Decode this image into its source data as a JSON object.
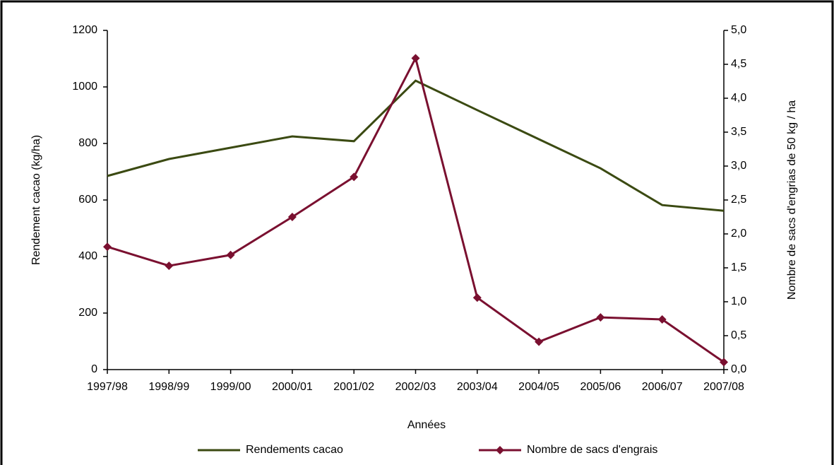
{
  "chart_data": {
    "type": "line",
    "x_label": "Années",
    "y_label": "Rendement cacao (kg/ha)",
    "y2_label": "Nombre de sacs d'engrias de 50 kg / ha",
    "categories": [
      "1997/98",
      "1998/99",
      "1999/00",
      "2000/01",
      "2001/02",
      "2002/03",
      "2003/04",
      "2004/05",
      "2005/06",
      "2006/07",
      "2007/08"
    ],
    "series": [
      {
        "name": "Rendements cacao",
        "color": "#3b4a12",
        "values": [
          685,
          745,
          785,
          825,
          808,
          1022,
          918,
          815,
          712,
          582,
          562
        ]
      },
      {
        "name": "Nombre de sacs d'engrais",
        "color": "#7a1030",
        "axis": "y2",
        "marker": "diamond",
        "values": [
          1.81,
          1.53,
          1.69,
          2.25,
          2.84,
          4.59,
          1.06,
          0.41,
          0.77,
          0.74,
          0.11
        ]
      }
    ],
    "ylim": [
      0,
      1200
    ],
    "yticks": [
      0,
      200,
      400,
      600,
      800,
      1000,
      1200
    ],
    "y2lim": [
      0,
      5
    ],
    "y2ticks": [
      {
        "value": 0,
        "label": "0,0"
      },
      {
        "value": 0.5,
        "label": "0,5"
      },
      {
        "value": 1,
        "label": "1,0"
      },
      {
        "value": 1.5,
        "label": "1,5"
      },
      {
        "value": 2,
        "label": "2,0"
      },
      {
        "value": 2.5,
        "label": "2,5"
      },
      {
        "value": 3,
        "label": "3,0"
      },
      {
        "value": 3.5,
        "label": "3,5"
      },
      {
        "value": 4,
        "label": "4,0"
      },
      {
        "value": 4.5,
        "label": "4,5"
      },
      {
        "value": 5,
        "label": "5,0"
      }
    ],
    "grid": false,
    "legend": "bottom"
  }
}
